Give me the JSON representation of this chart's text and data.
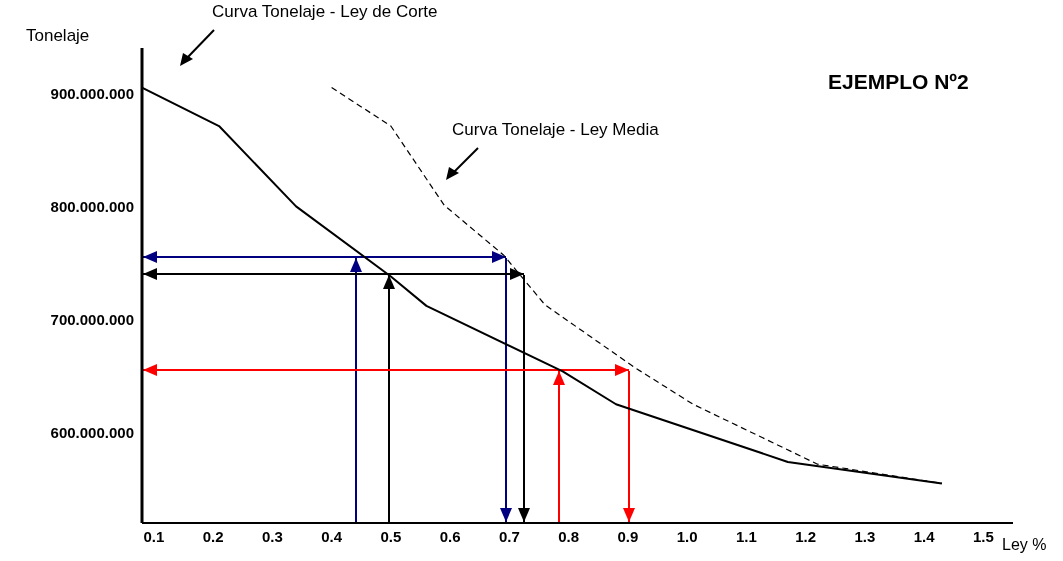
{
  "chart_data": {
    "type": "line",
    "title": "EJEMPLO Nº2",
    "xlabel": "Ley %",
    "ylabel": "Tonelaje",
    "annotations": [
      "Curva Tonelaje - Ley de Corte",
      "Curva Tonelaje - Ley Media"
    ],
    "xlim": [
      0.08,
      1.55
    ],
    "xticks": [
      0.1,
      0.2,
      0.3,
      0.4,
      0.5,
      0.6,
      0.7,
      0.8,
      0.9,
      {
        "value": 1,
        "label": "1.0"
      },
      1.1,
      1.2,
      1.3,
      1.4,
      1.5
    ],
    "ylim": [
      520000000,
      940000000
    ],
    "yticks": [
      {
        "value": 600000000,
        "label": "600.000.000"
      },
      {
        "value": 700000000,
        "label": "700.000.000"
      },
      {
        "value": 800000000,
        "label": "800.000.000"
      },
      {
        "value": 900000000,
        "label": "900.000.000"
      }
    ],
    "marker": "none",
    "series": [
      {
        "color": "#000000",
        "line_style": "solid",
        "x": [
          0.08,
          0.21,
          0.34,
          0.5,
          0.56,
          0.79,
          0.88,
          1.17,
          1.43
        ],
        "values": [
          905000000,
          871000000,
          800000000,
          738000000,
          712000000,
          654000000,
          625000000,
          574000000,
          555000000
        ]
      },
      {
        "color": "#000000",
        "line_style": "dashed",
        "x": [
          0.4,
          0.5,
          0.59,
          0.69,
          0.76,
          0.91,
          1.01,
          1.22,
          1.43
        ],
        "values": [
          905000000,
          871000000,
          801000000,
          757000000,
          713000000,
          658000000,
          625000000,
          572000000,
          555000000
        ]
      }
    ]
  }
}
